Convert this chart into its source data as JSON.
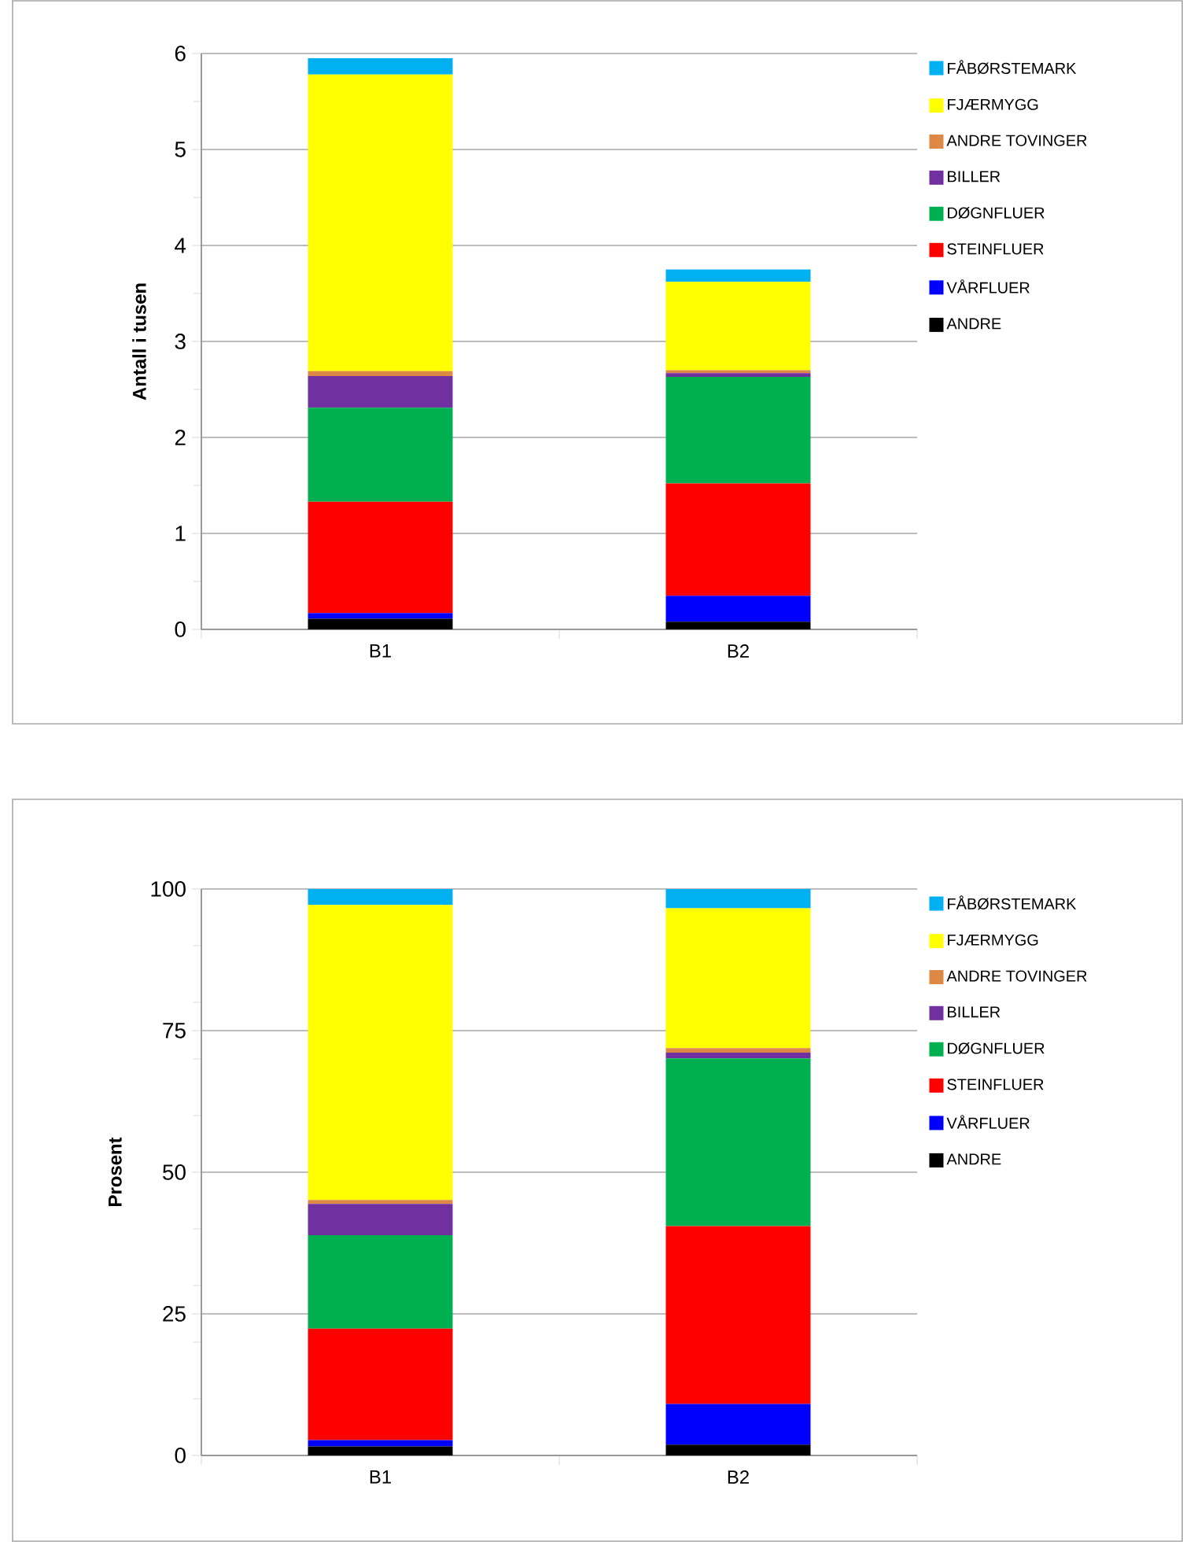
{
  "chart_data": [
    {
      "type": "bar",
      "stacked": true,
      "ylabel": "Antall i tusen",
      "categories": [
        "B1",
        "B2"
      ],
      "ylim": [
        0,
        6
      ],
      "yticks": [
        0,
        {
          "value": 0.5,
          "label": null
        },
        1,
        {
          "value": 1.5,
          "label": null
        },
        2,
        {
          "value": 2.5,
          "label": null
        },
        3,
        {
          "value": 3.5,
          "label": null
        },
        4,
        {
          "value": 4.5,
          "label": null
        },
        5,
        {
          "value": 5.5,
          "label": null
        },
        6
      ],
      "grid": "y",
      "legend": "right",
      "series": [
        {
          "name": "ANDRE",
          "color": "#000000",
          "values": [
            0.11,
            0.08
          ]
        },
        {
          "name": "VÅRFLUER",
          "color": "#0000ff",
          "values": [
            0.06,
            0.27
          ]
        },
        {
          "name": "STEINFLUER",
          "color": "#ff0000",
          "values": [
            1.16,
            1.17
          ]
        },
        {
          "name": "DØGNFLUER",
          "color": "#00b050",
          "values": [
            0.98,
            1.11
          ]
        },
        {
          "name": "BILLER",
          "color": "#7030a0",
          "values": [
            0.33,
            0.04
          ]
        },
        {
          "name": "ANDRE TOVINGER",
          "color": "#dd8844",
          "values": [
            0.05,
            0.03
          ]
        },
        {
          "name": "FJÆRMYGG",
          "color": "#ffff00",
          "values": [
            3.09,
            0.92
          ]
        },
        {
          "name": "FÅBØRSTEMARK",
          "color": "#00b0f0",
          "values": [
            0.17,
            0.13
          ]
        }
      ]
    },
    {
      "type": "bar",
      "stacked": true,
      "ylabel": "Prosent",
      "categories": [
        "B1",
        "B2"
      ],
      "ylim": [
        0,
        100
      ],
      "yticks": [
        0,
        {
          "value": 10,
          "label": null
        },
        {
          "value": 20,
          "label": null
        },
        25,
        {
          "value": 30,
          "label": null
        },
        {
          "value": 40,
          "label": null
        },
        50,
        {
          "value": 60,
          "label": null
        },
        {
          "value": 70,
          "label": null
        },
        75,
        {
          "value": 80,
          "label": null
        },
        {
          "value": 90,
          "label": null
        },
        100
      ],
      "grid": "y",
      "legend": "right",
      "series": [
        {
          "name": "ANDRE",
          "color": "#000000",
          "values": [
            1.6,
            1.9
          ]
        },
        {
          "name": "VÅRFLUER",
          "color": "#0000ff",
          "values": [
            1.1,
            7.2
          ]
        },
        {
          "name": "STEINFLUER",
          "color": "#ff0000",
          "values": [
            19.7,
            31.4
          ]
        },
        {
          "name": "DØGNFLUER",
          "color": "#00b050",
          "values": [
            16.5,
            29.6
          ]
        },
        {
          "name": "BILLER",
          "color": "#7030a0",
          "values": [
            5.5,
            1.0
          ]
        },
        {
          "name": "ANDRE TOVINGER",
          "color": "#dd8844",
          "values": [
            0.7,
            0.8
          ]
        },
        {
          "name": "FJÆRMYGG",
          "color": "#ffff00",
          "values": [
            52.1,
            24.7
          ]
        },
        {
          "name": "FÅBØRSTEMARK",
          "color": "#00b0f0",
          "values": [
            2.8,
            3.4
          ]
        }
      ]
    }
  ]
}
